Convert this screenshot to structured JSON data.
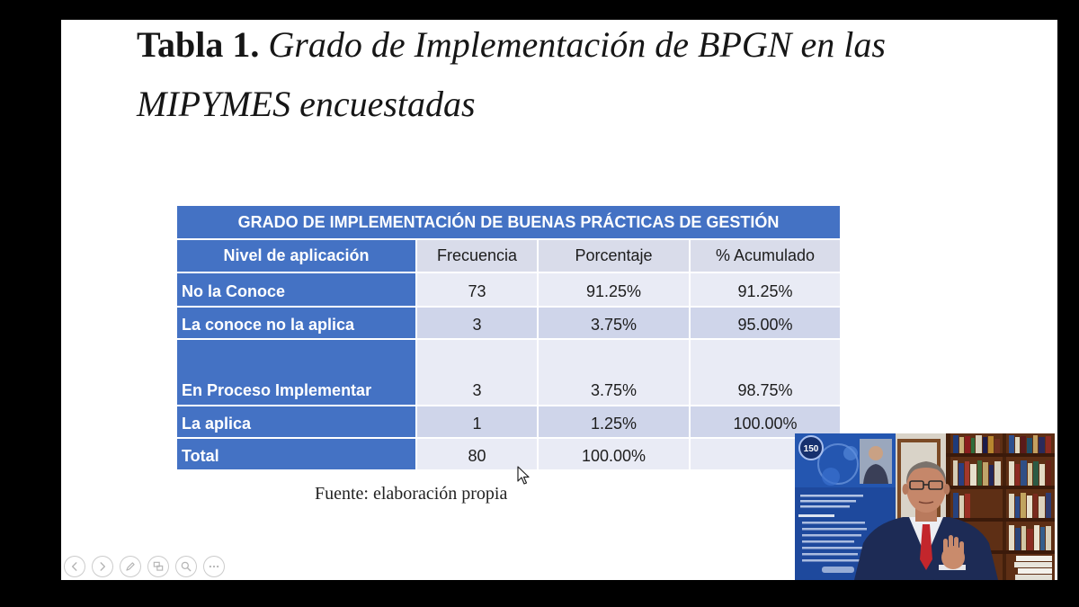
{
  "slide": {
    "title": {
      "label": "Tabla 1.",
      "line1": "Grado de Implementación de BPGN en las",
      "line2": "MIPYMES encuestadas"
    },
    "table": {
      "title": "GRADO DE IMPLEMENTACIÓN DE BUENAS PRÁCTICAS DE GESTIÓN",
      "columns": [
        "Nivel de aplicación",
        "Frecuencia",
        "Porcentaje",
        "% Acumulado"
      ],
      "rows": [
        [
          "No la Conoce",
          "73",
          "91.25%",
          "91.25%"
        ],
        [
          "La conoce no la aplica",
          "3",
          "3.75%",
          "95.00%"
        ],
        [
          "En Proceso Implementar",
          "3",
          "3.75%",
          "98.75%"
        ],
        [
          "La aplica",
          "1",
          "1.25%",
          "100.00%"
        ],
        [
          "Total",
          "80",
          "100.00%",
          ""
        ]
      ]
    },
    "source_note": "Fuente: elaboración propia"
  },
  "slideshow_controls": [
    {
      "icon": "previous-icon"
    },
    {
      "icon": "next-icon"
    },
    {
      "icon": "pen-icon"
    },
    {
      "icon": "slides-icon"
    },
    {
      "icon": "zoom-icon"
    },
    {
      "icon": "more-options-icon"
    }
  ],
  "webcam": {
    "banner_logo": "150"
  },
  "colors": {
    "background": "#000000",
    "slide": "#ffffff",
    "accent_blue": "#4472c4",
    "header_cells": "#d9dcea",
    "row_light": "#e9ebf5",
    "row_mid": "#cfd5ea"
  }
}
